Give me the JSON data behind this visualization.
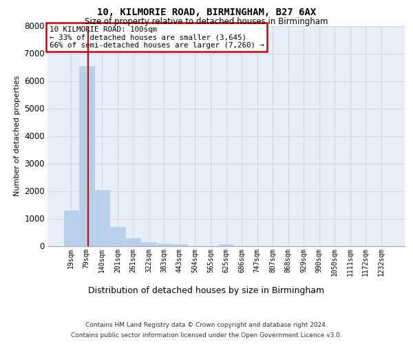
{
  "title_line1": "10, KILMORIE ROAD, BIRMINGHAM, B27 6AX",
  "title_line2": "Size of property relative to detached houses in Birmingham",
  "xlabel": "Distribution of detached houses by size in Birmingham",
  "ylabel": "Number of detached properties",
  "categories": [
    "19sqm",
    "79sqm",
    "140sqm",
    "201sqm",
    "261sqm",
    "322sqm",
    "383sqm",
    "443sqm",
    "504sqm",
    "565sqm",
    "625sqm",
    "686sqm",
    "747sqm",
    "807sqm",
    "868sqm",
    "929sqm",
    "990sqm",
    "1050sqm",
    "1111sqm",
    "1172sqm",
    "1232sqm"
  ],
  "values": [
    1300,
    6550,
    2050,
    680,
    290,
    130,
    80,
    55,
    0,
    0,
    60,
    0,
    0,
    0,
    0,
    0,
    0,
    0,
    0,
    0,
    0
  ],
  "bar_color": "#b8d0ea",
  "bar_edge_color": "#b8d0ea",
  "vline_x": 1.1,
  "vline_color": "#cc0000",
  "annotation_text": "10 KILMORIE ROAD: 100sqm\n← 33% of detached houses are smaller (3,645)\n66% of semi-detached houses are larger (7,260) →",
  "annotation_box_facecolor": "#ffffff",
  "annotation_box_edgecolor": "#cc0000",
  "ylim": [
    0,
    8000
  ],
  "yticks": [
    0,
    1000,
    2000,
    3000,
    4000,
    5000,
    6000,
    7000,
    8000
  ],
  "grid_color": "#d0d8e8",
  "bg_color": "#e8eef8",
  "footer_line1": "Contains HM Land Registry data © Crown copyright and database right 2024.",
  "footer_line2": "Contains public sector information licensed under the Open Government Licence v3.0."
}
